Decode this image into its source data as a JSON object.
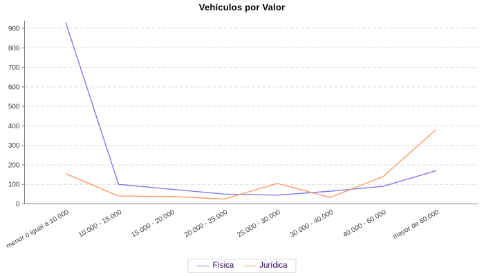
{
  "title": "Vehículos por Valor",
  "chart_data": {
    "type": "line",
    "title": "Vehículos por Valor",
    "categories": [
      "menor o igual a 10.000",
      "10.000 - 15.000",
      "15.000 - 20.000",
      "20.000 - 25.000",
      "25.000 - 30.000",
      "30.000 - 40.000",
      "40.000 - 60.000",
      "mayor de 60.000"
    ],
    "series": [
      {
        "name": "Física",
        "color": "#7b7bf2",
        "values": [
          930,
          100,
          75,
          50,
          45,
          65,
          90,
          170
        ]
      },
      {
        "name": "Jurídica",
        "color": "#ff9966",
        "values": [
          155,
          40,
          38,
          25,
          105,
          33,
          140,
          380
        ]
      }
    ],
    "yticks": [
      0,
      100,
      200,
      300,
      400,
      500,
      600,
      700,
      800,
      900
    ],
    "ylim": [
      0,
      940
    ],
    "grid": "horizontal-dashed",
    "legend_position": "bottom",
    "colors": {
      "axis": "#808080",
      "gridline": "#d9d9d9",
      "tick_text": "#3c3c3c",
      "legend_text": "#330066",
      "title_text": "#000000",
      "background": "#ffffff"
    }
  }
}
